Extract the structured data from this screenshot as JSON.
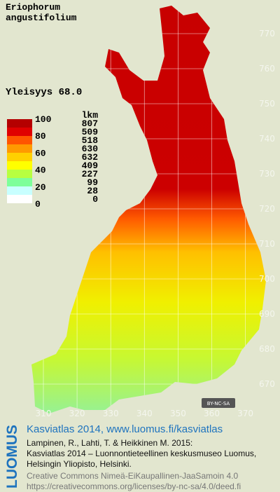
{
  "title": [
    "Eriophorum",
    "angustifolium"
  ],
  "frequency": "Yleisyys  68.0",
  "legend": {
    "header": "lkm",
    "scale_labels": [
      "100",
      "80",
      "60",
      "40",
      "20",
      "0"
    ],
    "counts": [
      807,
      509,
      518,
      630,
      632,
      409,
      227,
      99,
      28,
      0
    ],
    "colors": [
      "#b40000",
      "#e00000",
      "#ff5500",
      "#ff9a00",
      "#ffd000",
      "#ffff00",
      "#b8ff40",
      "#7dff9a",
      "#c8ffff",
      "#ffffff"
    ]
  },
  "grid": {
    "northing": [
      "770",
      "760",
      "750",
      "740",
      "730",
      "720",
      "710",
      "700",
      "690",
      "680",
      "670"
    ],
    "easting": [
      "310",
      "320",
      "330",
      "340",
      "350",
      "360",
      "370"
    ]
  },
  "badge": "BY-NC-SA",
  "footer": {
    "logo": "LUOMUS",
    "headline": "Kasviatlas 2014, www.luomus.fi/kasviatlas",
    "citation": [
      "Lampinen, R., Lahti, T. & Heikkinen M. 2015:",
      "Kasviatlas 2014 – Luonnontieteellinen keskusmuseo Luomus,",
      "Helsingin Yliopisto, Helsinki."
    ],
    "license": [
      "Creative Commons Nimeä-EiKaupallinen-JaaSamoin 4.0",
      "https://creativecommons.org/licenses/by-nc-sa/4.0/deed.fi"
    ]
  }
}
